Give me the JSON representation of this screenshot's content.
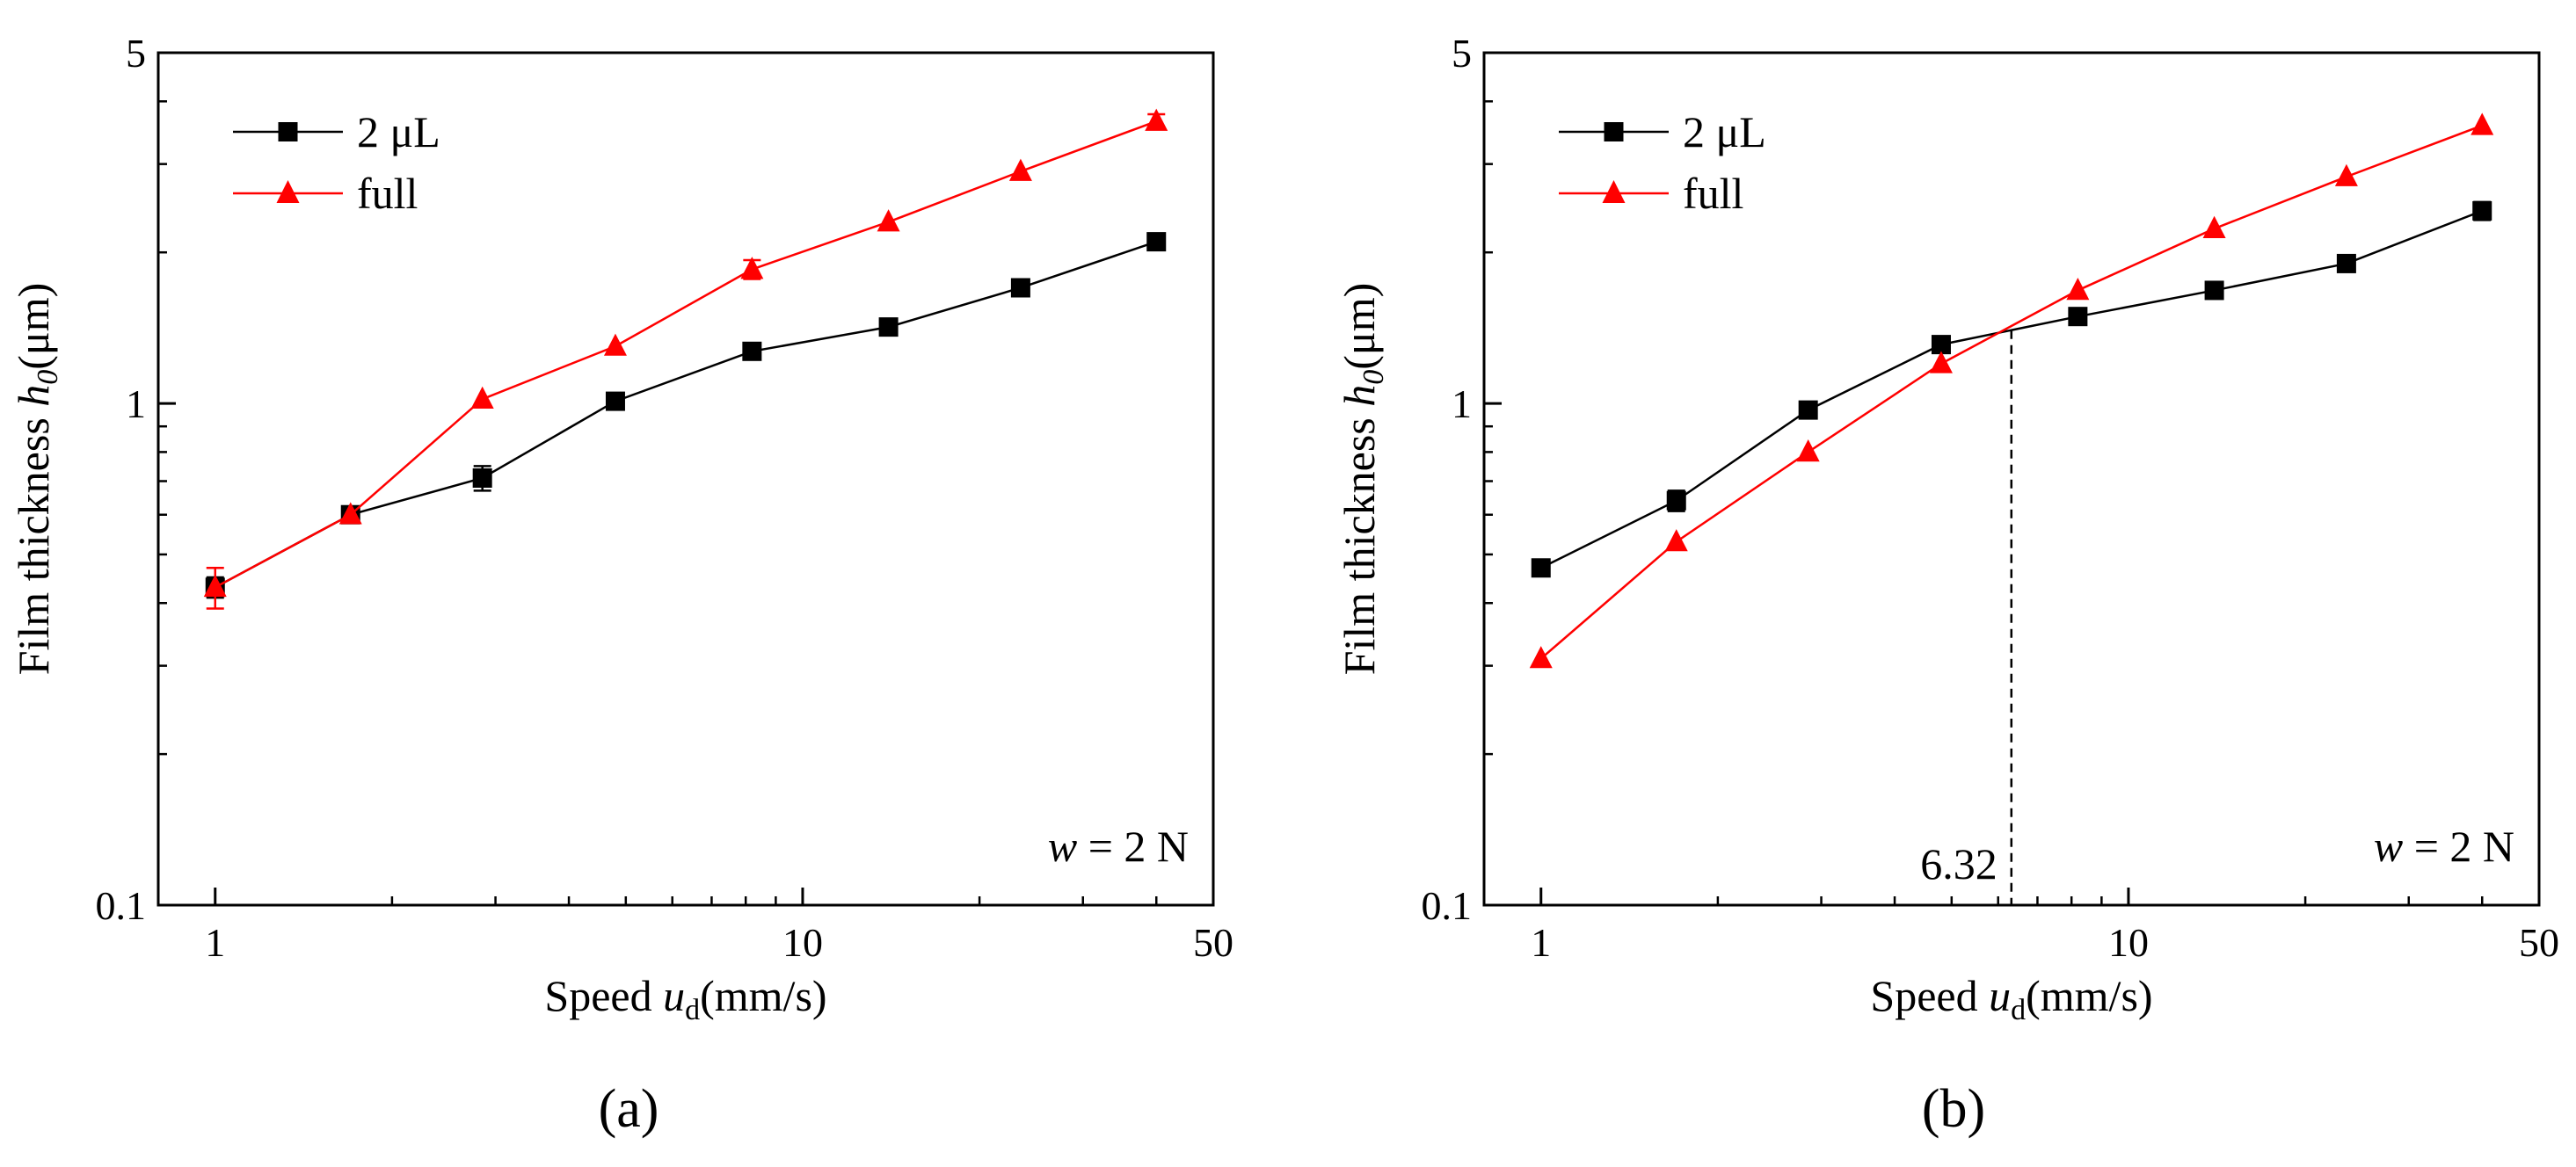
{
  "chart_data": [
    {
      "type": "line",
      "panel": "a",
      "caption": "(a)",
      "xscale": "log",
      "yscale": "log",
      "xlim": [
        0.8,
        50
      ],
      "ylim": [
        0.1,
        5
      ],
      "xticks": [
        1,
        10,
        50
      ],
      "xtick_labels": [
        "1",
        "10",
        "50"
      ],
      "yticks": [
        0.1,
        1,
        5
      ],
      "ytick_labels": [
        "0.1",
        "1",
        "5"
      ],
      "xlabel": {
        "pre": "Speed ",
        "var": "u",
        "sub": "d",
        "post": "(mm/s)"
      },
      "ylabel": {
        "pre": "Film thickness ",
        "var": "h",
        "sub": "0",
        "post": "(μm)"
      },
      "annotation": {
        "var": "w",
        "rest": " = 2 N"
      },
      "legend_position": "top-left",
      "series": [
        {
          "name": "2 μL",
          "color": "#000000",
          "marker": "square",
          "x": [
            1,
            1.7,
            2.85,
            4.8,
            8.2,
            14,
            23.5,
            40
          ],
          "y": [
            0.43,
            0.6,
            0.71,
            1.01,
            1.27,
            1.42,
            1.7,
            2.1
          ],
          "err": [
            0.02,
            0.0,
            0.04,
            0.02,
            0.02,
            0.05,
            0.03,
            0.02
          ]
        },
        {
          "name": "full",
          "color": "#ff0000",
          "marker": "triangle",
          "x": [
            1,
            1.7,
            2.85,
            4.8,
            8.2,
            14,
            23.5,
            40
          ],
          "y": [
            0.43,
            0.6,
            1.02,
            1.3,
            1.85,
            2.3,
            2.9,
            3.65
          ],
          "err": [
            0.04,
            0.0,
            0.0,
            0.0,
            0.08,
            0.0,
            0.0,
            0.12
          ]
        }
      ]
    },
    {
      "type": "line",
      "panel": "b",
      "caption": "(b)",
      "xscale": "log",
      "yscale": "log",
      "xlim": [
        0.8,
        50
      ],
      "ylim": [
        0.1,
        5
      ],
      "xticks": [
        1,
        10,
        50
      ],
      "xtick_labels": [
        "1",
        "10",
        "50"
      ],
      "yticks": [
        0.1,
        1,
        5
      ],
      "ytick_labels": [
        "0.1",
        "1",
        "5"
      ],
      "xlabel": {
        "pre": "Speed ",
        "var": "u",
        "sub": "d",
        "post": "(mm/s)"
      },
      "ylabel": {
        "pre": "Film thickness ",
        "var": "h",
        "sub": "0",
        "post": "(μm)"
      },
      "annotation": {
        "var": "w",
        "rest": " = 2 N"
      },
      "legend_position": "top-left",
      "crossover": {
        "x": 6.32,
        "label": "6.32"
      },
      "series": [
        {
          "name": "2 μL",
          "color": "#000000",
          "marker": "square",
          "x": [
            1,
            1.7,
            2.85,
            4.8,
            8.2,
            14,
            23.5,
            40
          ],
          "y": [
            0.47,
            0.64,
            0.97,
            1.31,
            1.49,
            1.68,
            1.9,
            2.42
          ],
          "err": [
            0.0,
            0.03,
            0.03,
            0.02,
            0.03,
            0.02,
            0.02,
            0.1
          ]
        },
        {
          "name": "full",
          "color": "#ff0000",
          "marker": "triangle",
          "x": [
            1,
            1.7,
            2.85,
            4.8,
            8.2,
            14,
            23.5,
            40
          ],
          "y": [
            0.31,
            0.53,
            0.8,
            1.2,
            1.68,
            2.23,
            2.83,
            3.58
          ],
          "err": [
            0.0,
            0.0,
            0.0,
            0.0,
            0.0,
            0.0,
            0.0,
            0.0
          ]
        }
      ]
    }
  ]
}
